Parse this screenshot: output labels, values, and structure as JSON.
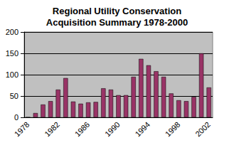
{
  "chart_data": {
    "type": "bar",
    "title": "Regional Utility Conservation\nAcquisition Summary 1978-2000",
    "categories": [
      "1978",
      null,
      null,
      null,
      "1982",
      null,
      null,
      null,
      "1986",
      null,
      null,
      null,
      "1990",
      null,
      null,
      null,
      "1994",
      null,
      null,
      null,
      "1998",
      null,
      null,
      null,
      "2002"
    ],
    "values": [
      0,
      10,
      30,
      38,
      65,
      92,
      37,
      32,
      35,
      36,
      68,
      65,
      52,
      52,
      95,
      137,
      122,
      108,
      95,
      56,
      40,
      38,
      48,
      150,
      70
    ],
    "color": "#993366",
    "ylim": [
      0,
      200
    ],
    "yticks": [
      0,
      50,
      100,
      150,
      200
    ],
    "grid": true
  }
}
